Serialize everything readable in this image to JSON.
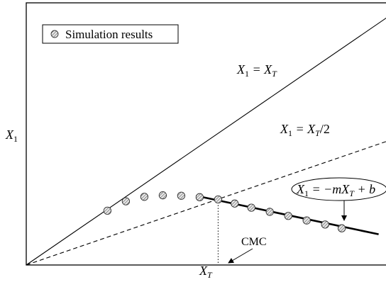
{
  "chart_data": {
    "type": "scatter",
    "title": "",
    "xlabel": "X",
    "xlabel_sub": "T",
    "ylabel": "X",
    "ylabel_sub": "1",
    "xlim": [
      0,
      10
    ],
    "ylim": [
      0,
      7
    ],
    "grid": false,
    "legend": {
      "position": "top-left",
      "label": "Simulation results"
    },
    "series": [
      {
        "name": "Simulation results",
        "marker": "hatched-circle",
        "x": [
          2.2,
          2.7,
          3.2,
          3.7,
          4.2,
          4.7,
          5.2,
          5.65,
          6.1,
          6.6,
          7.1,
          7.6,
          8.1,
          8.55
        ],
        "y": [
          1.45,
          1.7,
          1.82,
          1.86,
          1.85,
          1.81,
          1.75,
          1.64,
          1.53,
          1.42,
          1.31,
          1.19,
          1.08,
          0.98
        ]
      }
    ],
    "lines": [
      {
        "id": "identity",
        "style": "solid",
        "x": [
          0,
          10
        ],
        "y": [
          0,
          6.76
        ],
        "label_base": "X",
        "label_sub1": "1",
        "label_mid": " = X",
        "label_sub2": "T",
        "label_tail": ""
      },
      {
        "id": "half",
        "style": "dashed",
        "x": [
          0,
          10
        ],
        "y": [
          0,
          3.38
        ],
        "label_base": "X",
        "label_sub1": "1",
        "label_mid": " = X",
        "label_sub2": "T",
        "label_tail": "/2"
      },
      {
        "id": "fit",
        "style": "bold",
        "x": [
          4.6,
          9.55
        ],
        "y": [
          1.85,
          0.82
        ],
        "label_base": "X",
        "label_sub1": "1",
        "label_mid": " = −mX",
        "label_sub2": "T",
        "label_tail": " + b"
      }
    ],
    "annotations": [
      {
        "id": "cmc",
        "text": "CMC",
        "x": 5.2,
        "y": 1.75
      }
    ]
  }
}
